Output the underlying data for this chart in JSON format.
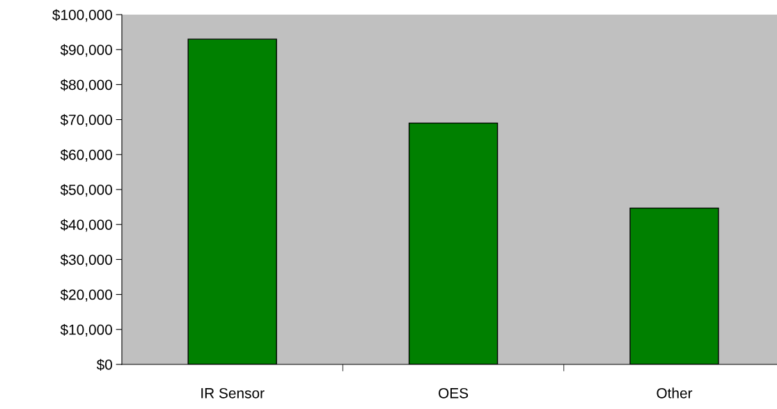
{
  "chart_data": {
    "type": "bar",
    "categories": [
      "IR Sensor",
      "OES",
      "Other"
    ],
    "values": [
      93000,
      69000,
      44700
    ],
    "color": "#008000",
    "ylim": [
      0,
      100000
    ],
    "yticks": [
      {
        "value": 0,
        "label": "$0"
      },
      {
        "value": 10000,
        "label": "$10,000"
      },
      {
        "value": 20000,
        "label": "$20,000"
      },
      {
        "value": 30000,
        "label": "$30,000"
      },
      {
        "value": 40000,
        "label": "$40,000"
      },
      {
        "value": 50000,
        "label": "$50,000"
      },
      {
        "value": 60000,
        "label": "$60,000"
      },
      {
        "value": 70000,
        "label": "$70,000"
      },
      {
        "value": 80000,
        "label": "$80,000"
      },
      {
        "value": 90000,
        "label": "$90,000"
      },
      {
        "value": 100000,
        "label": "$100,000"
      }
    ],
    "grid": false,
    "legend": false
  }
}
